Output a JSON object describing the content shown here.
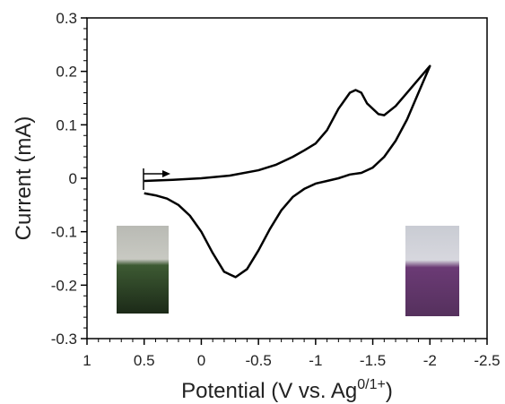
{
  "chart_data": {
    "type": "line",
    "xlabel": [
      "Potential (V vs. Ag",
      "0/1+",
      ")"
    ],
    "ylabel": "Current (mA)",
    "xlim": [
      1,
      -2.5
    ],
    "xticks": [
      1,
      0.5,
      0,
      -0.5,
      -1,
      -1.5,
      -2,
      -2.5
    ],
    "ylim": [
      -0.3,
      0.3
    ],
    "yticks": [
      0.3,
      0.2,
      0.1,
      0,
      -0.1,
      -0.2,
      -0.3
    ],
    "series": [
      {
        "color": "#000000",
        "x": [
          0.5,
          0.25,
          0,
          -0.25,
          -0.5,
          -0.65,
          -0.8,
          -0.9,
          -1.0,
          -1.1,
          -1.2,
          -1.3,
          -1.35,
          -1.4,
          -1.45,
          -1.55,
          -1.6,
          -1.7,
          -1.8,
          -1.9,
          -2.0,
          -1.9,
          -1.8,
          -1.7,
          -1.6,
          -1.5,
          -1.4,
          -1.3,
          -1.2,
          -1.1,
          -1.0,
          -0.9,
          -0.8,
          -0.7,
          -0.6,
          -0.5,
          -0.4,
          -0.3,
          -0.2,
          -0.1,
          0,
          0.1,
          0.2,
          0.3,
          0.4,
          0.5
        ],
        "values": [
          -0.005,
          -0.003,
          0,
          0.005,
          0.015,
          0.025,
          0.04,
          0.052,
          0.065,
          0.09,
          0.13,
          0.16,
          0.165,
          0.16,
          0.14,
          0.12,
          0.118,
          0.135,
          0.16,
          0.185,
          0.21,
          0.16,
          0.11,
          0.07,
          0.04,
          0.02,
          0.01,
          0.007,
          0.0,
          -0.005,
          -0.01,
          -0.02,
          -0.035,
          -0.06,
          -0.095,
          -0.135,
          -0.17,
          -0.185,
          -0.175,
          -0.14,
          -0.1,
          -0.07,
          -0.05,
          -0.038,
          -0.032,
          -0.028
        ]
      }
    ]
  }
}
